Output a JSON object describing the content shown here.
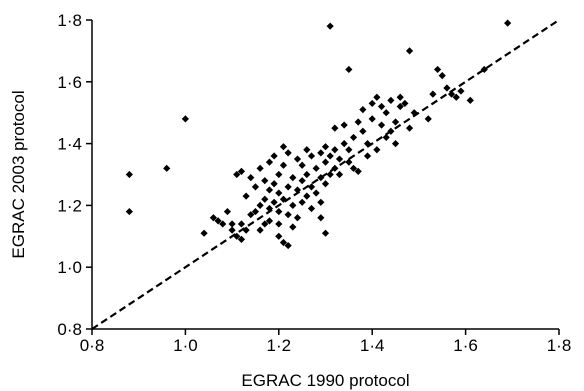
{
  "chart_data": {
    "type": "scatter",
    "title": "",
    "xlabel": "EGRAC 1990 protocol",
    "ylabel": "EGRAC 2003 protocol",
    "xlim": [
      0.8,
      1.8
    ],
    "ylim": [
      0.8,
      1.8
    ],
    "x_ticks": [
      0.8,
      1.0,
      1.2,
      1.4,
      1.6,
      1.8
    ],
    "y_ticks": [
      0.8,
      1.0,
      1.2,
      1.4,
      1.6,
      1.8
    ],
    "x_tick_labels": [
      "0·8",
      "1·0",
      "1·2",
      "1·4",
      "1·6",
      "1·8"
    ],
    "y_tick_labels": [
      "0·8",
      "1·0",
      "1·2",
      "1·4",
      "1·6",
      "1·8"
    ],
    "grid": false,
    "marker": "diamond",
    "marker_color": "#000000",
    "reference_line": {
      "style": "dashed",
      "from": [
        0.8,
        0.8
      ],
      "to": [
        1.8,
        1.8
      ],
      "color": "#000000"
    },
    "points": [
      [
        0.88,
        1.3
      ],
      [
        0.88,
        1.18
      ],
      [
        0.96,
        1.32
      ],
      [
        1.0,
        1.48
      ],
      [
        1.04,
        1.11
      ],
      [
        1.06,
        1.16
      ],
      [
        1.07,
        1.15
      ],
      [
        1.08,
        1.14
      ],
      [
        1.09,
        1.18
      ],
      [
        1.1,
        1.14
      ],
      [
        1.1,
        1.12
      ],
      [
        1.11,
        1.3
      ],
      [
        1.11,
        1.1
      ],
      [
        1.12,
        1.09
      ],
      [
        1.12,
        1.14
      ],
      [
        1.12,
        1.31
      ],
      [
        1.13,
        1.12
      ],
      [
        1.13,
        1.23
      ],
      [
        1.14,
        1.29
      ],
      [
        1.14,
        1.17
      ],
      [
        1.15,
        1.26
      ],
      [
        1.15,
        1.18
      ],
      [
        1.16,
        1.2
      ],
      [
        1.16,
        1.12
      ],
      [
        1.16,
        1.32
      ],
      [
        1.17,
        1.28
      ],
      [
        1.17,
        1.22
      ],
      [
        1.17,
        1.14
      ],
      [
        1.18,
        1.25
      ],
      [
        1.18,
        1.19
      ],
      [
        1.18,
        1.34
      ],
      [
        1.18,
        1.15
      ],
      [
        1.19,
        1.27
      ],
      [
        1.19,
        1.21
      ],
      [
        1.19,
        1.36
      ],
      [
        1.2,
        1.24
      ],
      [
        1.2,
        1.18
      ],
      [
        1.2,
        1.3
      ],
      [
        1.2,
        1.1
      ],
      [
        1.2,
        1.14
      ],
      [
        1.21,
        1.22
      ],
      [
        1.21,
        1.33
      ],
      [
        1.21,
        1.08
      ],
      [
        1.21,
        1.39
      ],
      [
        1.22,
        1.26
      ],
      [
        1.22,
        1.17
      ],
      [
        1.22,
        1.07
      ],
      [
        1.22,
        1.37
      ],
      [
        1.23,
        1.29
      ],
      [
        1.23,
        1.2
      ],
      [
        1.23,
        1.13
      ],
      [
        1.24,
        1.25
      ],
      [
        1.24,
        1.35
      ],
      [
        1.24,
        1.16
      ],
      [
        1.25,
        1.28
      ],
      [
        1.25,
        1.21
      ],
      [
        1.25,
        1.33
      ],
      [
        1.26,
        1.23
      ],
      [
        1.26,
        1.3
      ],
      [
        1.26,
        1.38
      ],
      [
        1.27,
        1.26
      ],
      [
        1.27,
        1.36
      ],
      [
        1.27,
        1.19
      ],
      [
        1.28,
        1.32
      ],
      [
        1.28,
        1.24
      ],
      [
        1.29,
        1.29
      ],
      [
        1.29,
        1.37
      ],
      [
        1.29,
        1.16
      ],
      [
        1.29,
        1.21
      ],
      [
        1.3,
        1.34
      ],
      [
        1.3,
        1.11
      ],
      [
        1.3,
        1.27
      ],
      [
        1.3,
        1.39
      ],
      [
        1.31,
        1.78
      ],
      [
        1.31,
        1.3
      ],
      [
        1.31,
        1.36
      ],
      [
        1.32,
        1.32
      ],
      [
        1.32,
        1.38
      ],
      [
        1.32,
        1.45
      ],
      [
        1.33,
        1.35
      ],
      [
        1.33,
        1.3
      ],
      [
        1.34,
        1.4
      ],
      [
        1.34,
        1.46
      ],
      [
        1.35,
        1.64
      ],
      [
        1.35,
        1.38
      ],
      [
        1.35,
        1.34
      ],
      [
        1.36,
        1.42
      ],
      [
        1.36,
        1.32
      ],
      [
        1.37,
        1.47
      ],
      [
        1.37,
        1.31
      ],
      [
        1.38,
        1.44
      ],
      [
        1.38,
        1.51
      ],
      [
        1.39,
        1.4
      ],
      [
        1.39,
        1.36
      ],
      [
        1.4,
        1.53
      ],
      [
        1.4,
        1.48
      ],
      [
        1.41,
        1.55
      ],
      [
        1.41,
        1.38
      ],
      [
        1.42,
        1.46
      ],
      [
        1.42,
        1.52
      ],
      [
        1.43,
        1.5
      ],
      [
        1.43,
        1.42
      ],
      [
        1.44,
        1.54
      ],
      [
        1.44,
        1.44
      ],
      [
        1.45,
        1.47
      ],
      [
        1.45,
        1.4
      ],
      [
        1.46,
        1.52
      ],
      [
        1.46,
        1.55
      ],
      [
        1.47,
        1.53
      ],
      [
        1.48,
        1.7
      ],
      [
        1.48,
        1.45
      ],
      [
        1.49,
        1.5
      ],
      [
        1.52,
        1.48
      ],
      [
        1.53,
        1.56
      ],
      [
        1.54,
        1.64
      ],
      [
        1.55,
        1.62
      ],
      [
        1.56,
        1.58
      ],
      [
        1.57,
        1.56
      ],
      [
        1.58,
        1.55
      ],
      [
        1.59,
        1.57
      ],
      [
        1.61,
        1.54
      ],
      [
        1.64,
        1.64
      ],
      [
        1.69,
        1.79
      ]
    ]
  }
}
